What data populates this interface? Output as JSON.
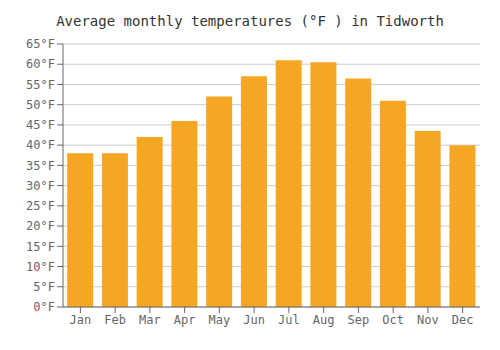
{
  "chart_data": {
    "type": "bar",
    "title": "Average monthly temperatures (°F ) in Tidworth",
    "categories": [
      "Jan",
      "Feb",
      "Mar",
      "Apr",
      "May",
      "Jun",
      "Jul",
      "Aug",
      "Sep",
      "Oct",
      "Nov",
      "Dec"
    ],
    "values": [
      38,
      38,
      42,
      46,
      52,
      57,
      61,
      60.5,
      56.5,
      51,
      43.5,
      40
    ],
    "color": "#F5A623",
    "ylim": [
      0,
      65
    ],
    "yticks": [
      {
        "value": 0,
        "label": "0°F"
      },
      {
        "value": 5,
        "label": "5°F"
      },
      {
        "value": 10,
        "label": "10°F"
      },
      {
        "value": 15,
        "label": "15°F"
      },
      {
        "value": 20,
        "label": "20°F"
      },
      {
        "value": 25,
        "label": "25°F"
      },
      {
        "value": 30,
        "label": "30°F"
      },
      {
        "value": 35,
        "label": "35°F"
      },
      {
        "value": 40,
        "label": "40°F"
      },
      {
        "value": 45,
        "label": "45°F"
      },
      {
        "value": 50,
        "label": "50°F"
      },
      {
        "value": 55,
        "label": "55°F"
      },
      {
        "value": 60,
        "label": "60°F"
      },
      {
        "value": 65,
        "label": "65°F"
      }
    ],
    "grid": true
  }
}
